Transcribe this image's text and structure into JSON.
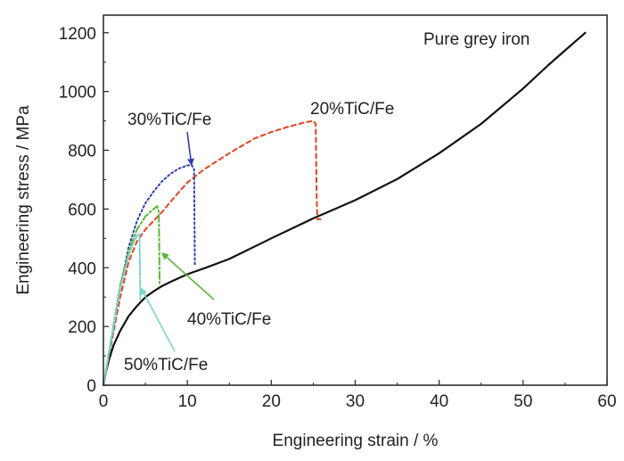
{
  "chart_data": {
    "type": "line",
    "title": "",
    "xlabel": "Engineering strain / %",
    "ylabel": "Engineering stress / MPa",
    "xlim": [
      0,
      60
    ],
    "ylim": [
      0,
      1260
    ],
    "xticks": [
      0,
      10,
      20,
      30,
      40,
      50,
      60
    ],
    "yticks": [
      0,
      200,
      400,
      600,
      800,
      1000,
      1200
    ],
    "grid": false,
    "legend": "none",
    "series": [
      {
        "name": "Pure grey iron",
        "color": "#111111",
        "dash": "solid",
        "x": [
          0,
          0.3,
          0.7,
          1.2,
          2,
          3,
          4,
          5,
          6,
          7,
          8,
          10,
          12,
          15,
          20,
          25,
          30,
          35,
          40,
          45,
          50,
          53,
          55,
          57.4
        ],
        "y": [
          0,
          45,
          90,
          135,
          185,
          235,
          270,
          300,
          320,
          338,
          352,
          378,
          398,
          430,
          500,
          568,
          630,
          702,
          790,
          890,
          1010,
          1090,
          1140,
          1200
        ]
      },
      {
        "name": "20%TiC/Fe",
        "color": "#e8411f",
        "dash": "5,4",
        "x": [
          0,
          1,
          2,
          3,
          4,
          5,
          6,
          7,
          8,
          10,
          12,
          15,
          18,
          20,
          22,
          24,
          25,
          25.3,
          25.4,
          25.5,
          26.2
        ],
        "y": [
          0,
          150,
          300,
          420,
          490,
          530,
          560,
          590,
          625,
          690,
          735,
          790,
          840,
          862,
          880,
          895,
          900,
          890,
          640,
          565,
          565
        ]
      },
      {
        "name": "30%TiC/Fe",
        "color": "#2f3fb0",
        "dash": "2,3",
        "x": [
          0,
          1,
          2,
          3,
          4,
          5,
          6,
          7,
          8,
          9,
          10,
          10.5,
          10.8,
          10.9
        ],
        "y": [
          0,
          160,
          330,
          470,
          560,
          620,
          660,
          695,
          720,
          738,
          748,
          750,
          735,
          410
        ]
      },
      {
        "name": "40%TiC/Fe",
        "color": "#56b93b",
        "dash": "8,3,2,3",
        "x": [
          0,
          1,
          2,
          3,
          4,
          5,
          6,
          6.4,
          6.6,
          6.7
        ],
        "y": [
          0,
          170,
          340,
          455,
          530,
          575,
          600,
          610,
          590,
          345
        ]
      },
      {
        "name": "50%TiC/Fe",
        "color": "#7ed3cf",
        "dash": "6,2,2,2",
        "x": [
          0,
          1,
          2,
          3,
          3.5,
          4,
          4.3,
          4.4
        ],
        "y": [
          0,
          165,
          330,
          440,
          480,
          510,
          515,
          290
        ]
      }
    ],
    "annotations": [
      {
        "text": "Pure grey iron",
        "series": 0
      },
      {
        "text": "20%TiC/Fe",
        "series": 1
      },
      {
        "text": "30%TiC/Fe",
        "series": 2,
        "arrow_to": [
          10.5,
          750
        ]
      },
      {
        "text": "40%TiC/Fe",
        "series": 3,
        "arrow_to": [
          7,
          450
        ]
      },
      {
        "text": "50%TiC/Fe",
        "series": 4,
        "arrow_to": [
          4.5,
          330
        ]
      }
    ]
  }
}
